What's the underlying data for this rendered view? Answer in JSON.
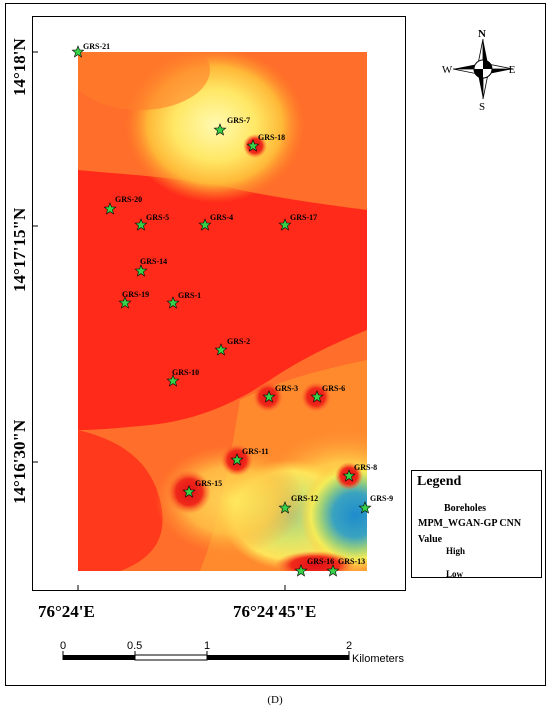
{
  "caption": "(D)",
  "latitude_labels": [
    "14°18'N",
    "14°17'15\"N",
    "14°16'30\"N"
  ],
  "longitude_labels": [
    "76°24'E",
    "76°24'45\"E"
  ],
  "north_arrow": {
    "n": "N",
    "s": "S",
    "e": "E",
    "w": "W",
    "icon": "north-arrow-icon"
  },
  "legend": {
    "title": "Legend",
    "boreholes_label": "Boreholes",
    "layer_name": "MPM_WGAN-GP CNN",
    "value_label": "Value",
    "high_label": "High",
    "low_label": "Low",
    "colors": {
      "high": "#ff2a1a",
      "mid": "#ffee50",
      "low": "#2c93c8"
    }
  },
  "scale_bar": {
    "ticks": [
      "0",
      "0.5",
      "1",
      "2"
    ],
    "unit": "Kilometers"
  },
  "boreholes": [
    {
      "label": "GRS-21"
    },
    {
      "label": "GRS-7"
    },
    {
      "label": "GRS-18"
    },
    {
      "label": "GRS-20"
    },
    {
      "label": "GRS-5"
    },
    {
      "label": "GRS-4"
    },
    {
      "label": "GRS-17"
    },
    {
      "label": "GRS-14"
    },
    {
      "label": "GRS-19"
    },
    {
      "label": "GRS-1"
    },
    {
      "label": "GRS-2"
    },
    {
      "label": "GRS-10"
    },
    {
      "label": "GRS-3"
    },
    {
      "label": "GRS-6"
    },
    {
      "label": "GRS-11"
    },
    {
      "label": "GRS-8"
    },
    {
      "label": "GRS-15"
    },
    {
      "label": "GRS-12"
    },
    {
      "label": "GRS-9"
    },
    {
      "label": "GRS-16"
    },
    {
      "label": "GRS-13"
    }
  ]
}
